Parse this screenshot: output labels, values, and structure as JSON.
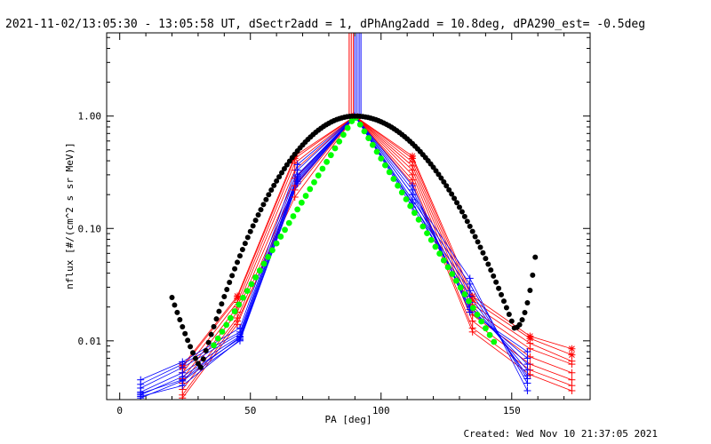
{
  "chart_data": {
    "type": "line",
    "title": "2021-11-02/13:05:30 - 13:05:58 UT, dSectr2add = 1, dPhAng2add = 10.8deg, dPA290_est= -0.5deg",
    "xlabel": "PA [deg]",
    "ylabel": "nflux [#/(cm^2 s sr MeV)]",
    "xlim": [
      -5,
      180
    ],
    "ylim": [
      0.003,
      5.5
    ],
    "yscale": "log",
    "grid": false,
    "x_ticks": [
      {
        "v": 0,
        "label": "0"
      },
      {
        "v": 50,
        "label": "50"
      },
      {
        "v": 100,
        "label": "100"
      },
      {
        "v": 150,
        "label": "150"
      }
    ],
    "y_ticks": [
      {
        "v": 1.0,
        "label": "1.00"
      },
      {
        "v": 0.1,
        "label": "0.10"
      },
      {
        "v": 0.01,
        "label": "0.01"
      }
    ],
    "footer": "Created: Wed Nov 10 21:37:05 2021",
    "colors": {
      "red": "#ff0000",
      "blue": "#0000ff",
      "green": "#00ff00",
      "black": "#000000"
    },
    "vertical_lines": [
      {
        "x": 87.8,
        "color": "#ff0000"
      },
      {
        "x": 88.6,
        "color": "#ff0000"
      },
      {
        "x": 89.4,
        "color": "#ff0000"
      },
      {
        "x": 90.0,
        "color": "#0000ff"
      },
      {
        "x": 90.8,
        "color": "#0000ff"
      },
      {
        "x": 91.6,
        "color": "#0000ff"
      },
      {
        "x": 92.3,
        "color": "#0000ff"
      }
    ],
    "green_curve": {
      "center": 90,
      "decay_deg": 11.5,
      "x_from": 36,
      "x_to": 144,
      "step": 1.6,
      "color": "#00ff00"
    },
    "black_curve": {
      "peak_x": 90,
      "peak_y": 1.0,
      "min_x1": 31,
      "min_y1": 0.0058,
      "min_x2": 151,
      "min_y2": 0.013,
      "x_from": 20,
      "x_to": 159,
      "step": 1.0,
      "color": "#000000"
    },
    "series": [
      {
        "color": "#ff0000",
        "marker": "star",
        "x": [
          24,
          45,
          67,
          90,
          112,
          135,
          157,
          173
        ],
        "y": [
          0.006,
          0.025,
          0.44,
          1.0,
          0.44,
          0.025,
          0.011,
          0.0085
        ]
      },
      {
        "color": "#ff0000",
        "marker": "star",
        "x": [
          24,
          45,
          67,
          90,
          112,
          135,
          157,
          173
        ],
        "y": [
          0.0058,
          0.024,
          0.42,
          1.0,
          0.42,
          0.023,
          0.0105,
          0.0075
        ]
      },
      {
        "color": "#ff0000",
        "marker": "plus",
        "x": [
          24,
          45,
          67,
          90,
          112,
          135,
          157,
          173
        ],
        "y": [
          0.0052,
          0.022,
          0.38,
          1.0,
          0.39,
          0.021,
          0.0095,
          0.0066
        ]
      },
      {
        "color": "#ff0000",
        "marker": "plus",
        "x": [
          24,
          45,
          67,
          90,
          112,
          135,
          157,
          173
        ],
        "y": [
          0.0046,
          0.02,
          0.33,
          1.0,
          0.36,
          0.019,
          0.0085,
          0.0062
        ]
      },
      {
        "color": "#ff0000",
        "marker": "plus",
        "x": [
          24,
          45,
          67,
          90,
          112,
          135,
          157,
          173
        ],
        "y": [
          0.0042,
          0.018,
          0.28,
          1.0,
          0.33,
          0.017,
          0.0072,
          0.0052
        ]
      },
      {
        "color": "#ff0000",
        "marker": "plus",
        "x": [
          24,
          45,
          67,
          90,
          112,
          135,
          157,
          173
        ],
        "y": [
          0.0037,
          0.016,
          0.24,
          1.0,
          0.3,
          0.015,
          0.0062,
          0.0045
        ]
      },
      {
        "color": "#ff0000",
        "marker": "plus",
        "x": [
          24,
          45,
          67,
          90,
          112,
          135,
          157,
          173
        ],
        "y": [
          0.0033,
          0.015,
          0.19,
          1.0,
          0.27,
          0.013,
          0.0055,
          0.004
        ]
      },
      {
        "color": "#ff0000",
        "marker": "plus",
        "x": [
          24,
          45,
          67,
          90,
          112,
          135,
          157,
          173
        ],
        "y": [
          0.0031,
          0.014,
          0.22,
          1.0,
          0.25,
          0.012,
          0.005,
          0.0036
        ]
      },
      {
        "color": "#0000ff",
        "marker": "plus",
        "x": [
          8,
          24,
          46,
          68,
          90,
          112,
          134,
          156
        ],
        "y": [
          0.0045,
          0.0065,
          0.013,
          0.37,
          1.0,
          0.2,
          0.036,
          0.0036
        ]
      },
      {
        "color": "#0000ff",
        "marker": "plus",
        "x": [
          8,
          24,
          46,
          68,
          90,
          112,
          134,
          156
        ],
        "y": [
          0.0041,
          0.0062,
          0.012,
          0.33,
          1.0,
          0.18,
          0.032,
          0.0042
        ]
      },
      {
        "color": "#0000ff",
        "marker": "plus",
        "x": [
          8,
          24,
          46,
          68,
          90,
          112,
          134,
          156
        ],
        "y": [
          0.0038,
          0.0058,
          0.0115,
          0.3,
          1.0,
          0.165,
          0.028,
          0.0046
        ]
      },
      {
        "color": "#0000ff",
        "marker": "plus",
        "x": [
          8,
          24,
          46,
          68,
          90,
          112,
          134,
          156
        ],
        "y": [
          0.0035,
          0.0052,
          0.011,
          0.28,
          1.0,
          0.155,
          0.025,
          0.0049
        ]
      },
      {
        "color": "#0000ff",
        "marker": "plus",
        "x": [
          8,
          24,
          46,
          68,
          90,
          112,
          134,
          156
        ],
        "y": [
          0.0033,
          0.0048,
          0.0105,
          0.26,
          1.0,
          0.17,
          0.022,
          0.0055
        ]
      },
      {
        "color": "#0000ff",
        "marker": "plus",
        "x": [
          8,
          24,
          46,
          68,
          90,
          112,
          134,
          156
        ],
        "y": [
          0.0031,
          0.0044,
          0.01,
          0.25,
          1.0,
          0.2,
          0.02,
          0.0062
        ]
      },
      {
        "color": "#0000ff",
        "marker": "plus",
        "x": [
          8,
          24,
          46,
          68,
          90,
          112,
          134,
          156
        ],
        "y": [
          0.0032,
          0.004,
          0.0102,
          0.27,
          1.0,
          0.22,
          0.019,
          0.007
        ]
      },
      {
        "color": "#0000ff",
        "marker": "plus",
        "x": [
          8,
          24,
          46,
          68,
          90,
          112,
          134,
          156
        ],
        "y": [
          0.0034,
          0.0045,
          0.0108,
          0.29,
          1.0,
          0.24,
          0.018,
          0.008
        ]
      }
    ]
  }
}
